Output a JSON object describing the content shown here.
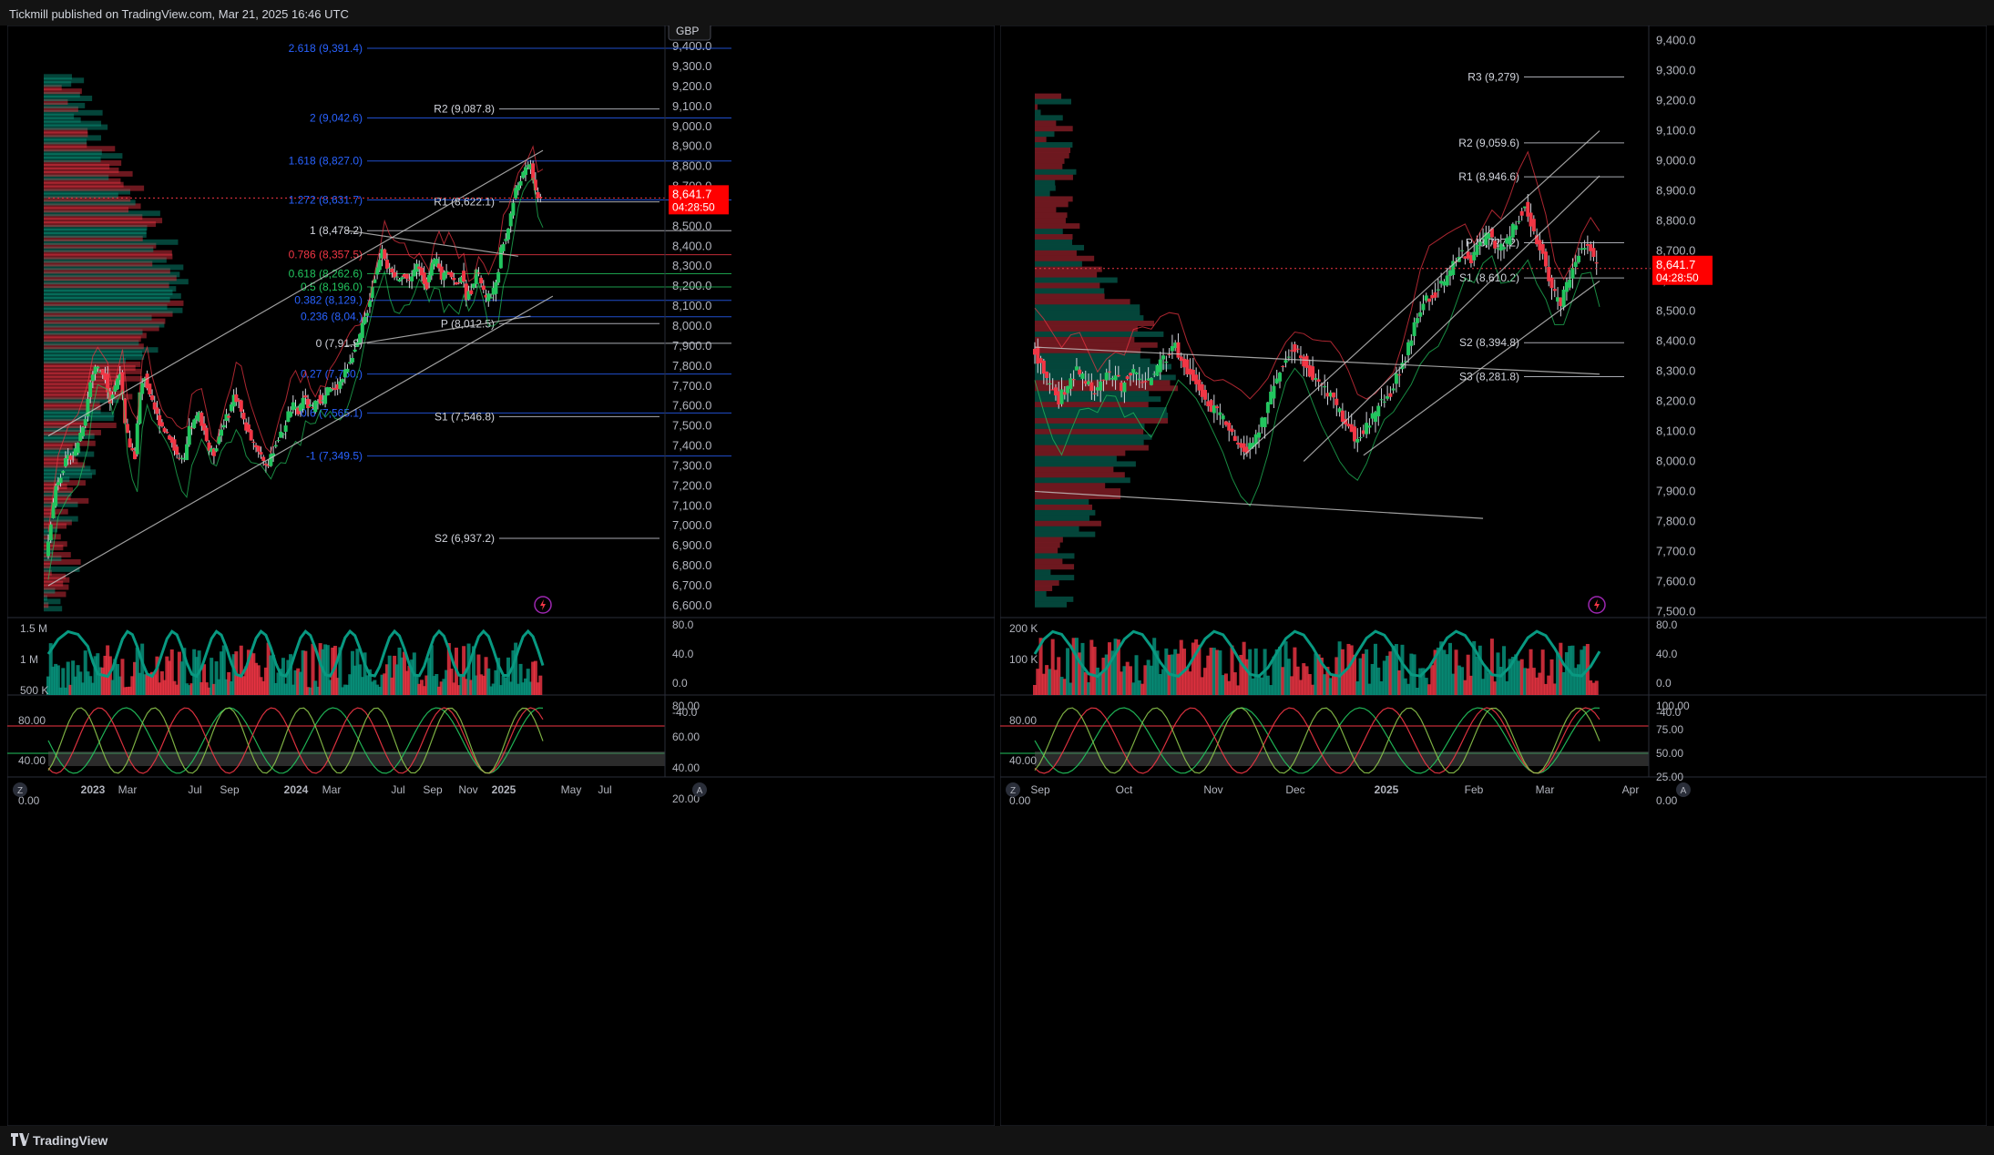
{
  "header": {
    "publish_text": "Tickmill published on TradingView.com, Mar 21, 2025 16:46 UTC"
  },
  "footer": {
    "brand": "TradingView"
  },
  "colors": {
    "up": "#089981",
    "up_bright": "#22c55e",
    "down": "#f23645",
    "background": "#000000",
    "price_tag": "#ff0000",
    "fib": "#2962ff",
    "ma": "#ff9800"
  },
  "icons": [
    "lightning-icon",
    "tradingview-logo-icon",
    "auto-scale-icon",
    "zoom-icon"
  ],
  "charts": {
    "left": {
      "currency": "GBP",
      "price_tag": "8,641.7",
      "countdown": "04:28:50",
      "zoom_label": "Z",
      "auto_label": "A"
    },
    "right": {
      "price_tag": "8,641.7",
      "countdown": "04:28:50",
      "zoom_label": "Z",
      "auto_label": "A"
    }
  },
  "chart_data": [
    {
      "type": "line",
      "panel": "left",
      "timeframe_labels": [
        "2023",
        "Mar",
        "Jul",
        "Sep",
        "2024",
        "Mar",
        "Jul",
        "Sep",
        "Nov",
        "2025",
        "May",
        "Jul"
      ],
      "y_ticks": [
        "9,400.0",
        "9,300.0",
        "9,200.0",
        "9,100.0",
        "9,000.0",
        "8,900.0",
        "8,800.0",
        "8,700.0",
        "8,600.0",
        "8,500.0",
        "8,400.0",
        "8,300.0",
        "8,200.0",
        "8,100.0",
        "8,000.0",
        "7,900.0",
        "7,800.0",
        "7,700.0",
        "7,600.0",
        "7,500.0",
        "7,400.0",
        "7,300.0",
        "7,200.0",
        "7,100.0",
        "7,000.0",
        "6,900.0",
        "6,800.0",
        "6,700.0",
        "6,600.0"
      ],
      "ylim": [
        6540,
        9460
      ],
      "grid": false,
      "series": [
        {
          "name": "",
          "values": [
            [
              0,
              6850
            ],
            [
              4,
              7200
            ],
            [
              8,
              7320
            ],
            [
              12,
              7380
            ],
            [
              16,
              7550
            ],
            [
              18,
              7720
            ],
            [
              20,
              7800
            ],
            [
              24,
              7750
            ],
            [
              26,
              7620
            ],
            [
              28,
              7700
            ],
            [
              30,
              7780
            ],
            [
              32,
              7500
            ],
            [
              34,
              7400
            ],
            [
              36,
              7350
            ],
            [
              38,
              7660
            ],
            [
              40,
              7750
            ],
            [
              42,
              7640
            ],
            [
              44,
              7580
            ],
            [
              46,
              7520
            ],
            [
              48,
              7480
            ],
            [
              50,
              7450
            ],
            [
              52,
              7380
            ],
            [
              54,
              7330
            ],
            [
              56,
              7320
            ],
            [
              58,
              7480
            ],
            [
              60,
              7520
            ],
            [
              62,
              7560
            ],
            [
              64,
              7480
            ],
            [
              66,
              7380
            ],
            [
              68,
              7360
            ],
            [
              70,
              7450
            ],
            [
              72,
              7520
            ],
            [
              74,
              7560
            ],
            [
              76,
              7650
            ],
            [
              78,
              7620
            ],
            [
              80,
              7520
            ],
            [
              82,
              7460
            ],
            [
              84,
              7420
            ],
            [
              86,
              7380
            ],
            [
              88,
              7330
            ],
            [
              90,
              7300
            ],
            [
              92,
              7380
            ],
            [
              94,
              7440
            ],
            [
              96,
              7470
            ],
            [
              98,
              7560
            ],
            [
              100,
              7600
            ],
            [
              102,
              7560
            ],
            [
              104,
              7650
            ],
            [
              106,
              7600
            ],
            [
              108,
              7580
            ],
            [
              110,
              7640
            ],
            [
              112,
              7620
            ],
            [
              114,
              7680
            ],
            [
              116,
              7680
            ],
            [
              118,
              7700
            ],
            [
              120,
              7740
            ],
            [
              122,
              7800
            ],
            [
              124,
              7860
            ],
            [
              126,
              7900
            ],
            [
              128,
              8000
            ],
            [
              130,
              8080
            ],
            [
              132,
              8200
            ],
            [
              134,
              8290
            ],
            [
              136,
              8400
            ],
            [
              138,
              8300
            ],
            [
              140,
              8250
            ],
            [
              142,
              8240
            ],
            [
              144,
              8260
            ],
            [
              146,
              8230
            ],
            [
              148,
              8250
            ],
            [
              150,
              8300
            ],
            [
              152,
              8260
            ],
            [
              154,
              8200
            ],
            [
              156,
              8300
            ],
            [
              158,
              8330
            ],
            [
              160,
              8240
            ],
            [
              162,
              8290
            ],
            [
              164,
              8250
            ],
            [
              166,
              8200
            ],
            [
              168,
              8260
            ],
            [
              170,
              8150
            ],
            [
              172,
              8180
            ],
            [
              174,
              8280
            ],
            [
              176,
              8220
            ],
            [
              178,
              8130
            ],
            [
              180,
              8160
            ],
            [
              182,
              8200
            ],
            [
              184,
              8380
            ],
            [
              186,
              8440
            ],
            [
              188,
              8560
            ],
            [
              190,
              8680
            ],
            [
              192,
              8740
            ],
            [
              194,
              8780
            ],
            [
              196,
              8820
            ],
            [
              198,
              8660
            ],
            [
              200,
              8640
            ]
          ]
        }
      ],
      "annotations": [
        {
          "text": "2.618 (9,391.4)",
          "price": 9391.4,
          "color": "#2962ff"
        },
        {
          "text": "2 (9,042.6)",
          "price": 9042.6,
          "color": "#2962ff"
        },
        {
          "text": "1.618 (8,827.0)",
          "price": 8827.0,
          "color": "#2962ff"
        },
        {
          "text": "1.272 (8,631.7)",
          "price": 8631.7,
          "color": "#2962ff"
        },
        {
          "text": "1 (8,478.2)",
          "price": 8478.2,
          "color": "#d1d4dc"
        },
        {
          "text": "0.786 (8,357.5)",
          "price": 8357.5,
          "color": "#f23645"
        },
        {
          "text": "0.618 (8,262.6)",
          "price": 8262.6,
          "color": "#22c55e"
        },
        {
          "text": "0.5 (8,196.0)",
          "price": 8196.0,
          "color": "#22c55e"
        },
        {
          "text": "0.382 (8,129.)",
          "price": 8129.0,
          "color": "#2962ff"
        },
        {
          "text": "0.236 (8,04.)",
          "price": 8047.0,
          "color": "#2962ff"
        },
        {
          "text": "0 (7,91.9)",
          "price": 7913.9,
          "color": "#d1d4dc"
        },
        {
          "text": "0.27 (7,760.)",
          "price": 7760.0,
          "color": "#2962ff"
        },
        {
          "text": "0.6 (7,565.1)",
          "price": 7565.1,
          "color": "#2962ff"
        },
        {
          "text": "-1 (7,349.5)",
          "price": 7349.5,
          "color": "#2962ff"
        },
        {
          "text": "R2 (9,087.8)",
          "price": 9087.8,
          "color": "#d1d4dc"
        },
        {
          "text": "R1 (8,622.1)",
          "price": 8622.1,
          "color": "#d1d4dc"
        },
        {
          "text": "P (8,012.5)",
          "price": 8012.5,
          "color": "#d1d4dc"
        },
        {
          "text": "S1 (7,546.8)",
          "price": 7546.8,
          "color": "#d1d4dc"
        },
        {
          "text": "S2 (6,937.2)",
          "price": 6937.2,
          "color": "#d1d4dc"
        }
      ],
      "volume_ticks": [
        "1.5 M",
        "1 M",
        "500 K"
      ],
      "oscillator_ticks_left": [
        "80.0",
        "40.0",
        "0.0",
        "-40.0"
      ],
      "stoch_ticks_left": [
        "80.00",
        "40.00",
        "0.00"
      ],
      "stoch_ticks_right": [
        "80.00",
        "60.00",
        "40.00",
        "20.00"
      ]
    },
    {
      "type": "line",
      "panel": "right",
      "timeframe_labels": [
        "Sep",
        "Oct",
        "Nov",
        "Dec",
        "2025",
        "Feb",
        "Mar",
        "Apr"
      ],
      "y_ticks": [
        "9,400.0",
        "9,300.0",
        "9,200.0",
        "9,100.0",
        "9,000.0",
        "8,900.0",
        "8,800.0",
        "8,700.0",
        "8,600.0",
        "8,500.0",
        "8,400.0",
        "8,300.0",
        "8,200.0",
        "8,100.0",
        "8,000.0",
        "7,900.0",
        "7,800.0",
        "7,700.0",
        "7,600.0",
        "7,500.0"
      ],
      "ylim": [
        7480,
        9420
      ],
      "grid": false,
      "series": [
        {
          "name": "",
          "values": [
            [
              0,
              8390
            ],
            [
              3,
              8320
            ],
            [
              6,
              8250
            ],
            [
              9,
              8200
            ],
            [
              12,
              8260
            ],
            [
              15,
              8300
            ],
            [
              18,
              8270
            ],
            [
              21,
              8230
            ],
            [
              24,
              8280
            ],
            [
              27,
              8290
            ],
            [
              30,
              8250
            ],
            [
              33,
              8300
            ],
            [
              36,
              8280
            ],
            [
              39,
              8260
            ],
            [
              42,
              8310
            ],
            [
              45,
              8350
            ],
            [
              48,
              8380
            ],
            [
              51,
              8320
            ],
            [
              54,
              8270
            ],
            [
              57,
              8220
            ],
            [
              60,
              8180
            ],
            [
              63,
              8150
            ],
            [
              66,
              8100
            ],
            [
              69,
              8060
            ],
            [
              72,
              8030
            ],
            [
              75,
              8080
            ],
            [
              78,
              8150
            ],
            [
              81,
              8250
            ],
            [
              84,
              8330
            ],
            [
              87,
              8370
            ],
            [
              90,
              8350
            ],
            [
              93,
              8300
            ],
            [
              96,
              8260
            ],
            [
              99,
              8230
            ],
            [
              102,
              8180
            ],
            [
              105,
              8130
            ],
            [
              108,
              8080
            ],
            [
              111,
              8100
            ],
            [
              114,
              8150
            ],
            [
              117,
              8200
            ],
            [
              120,
              8230
            ],
            [
              123,
              8300
            ],
            [
              126,
              8380
            ],
            [
              129,
              8480
            ],
            [
              132,
              8540
            ],
            [
              135,
              8560
            ],
            [
              138,
              8600
            ],
            [
              141,
              8650
            ],
            [
              144,
              8700
            ],
            [
              147,
              8660
            ],
            [
              150,
              8720
            ],
            [
              153,
              8760
            ],
            [
              156,
              8700
            ],
            [
              159,
              8740
            ],
            [
              162,
              8800
            ],
            [
              165,
              8850
            ],
            [
              168,
              8760
            ],
            [
              171,
              8680
            ],
            [
              174,
              8560
            ],
            [
              177,
              8530
            ],
            [
              180,
              8600
            ],
            [
              183,
              8690
            ],
            [
              186,
              8720
            ],
            [
              189,
              8640
            ]
          ]
        }
      ],
      "annotations": [
        {
          "text": "R3 (9,279)",
          "price": 9279,
          "color": "#d1d4dc"
        },
        {
          "text": "R2 (9,059.6)",
          "price": 9059.6,
          "color": "#d1d4dc"
        },
        {
          "text": "R1 (8,946.6)",
          "price": 8946.6,
          "color": "#d1d4dc"
        },
        {
          "text": "P (8,727.2)",
          "price": 8727.2,
          "color": "#d1d4dc"
        },
        {
          "text": "S1 (8,610.2)",
          "price": 8610.2,
          "color": "#d1d4dc"
        },
        {
          "text": "S2 (8,394.8)",
          "price": 8394.8,
          "color": "#d1d4dc"
        },
        {
          "text": "S3 (8,281.8)",
          "price": 8281.8,
          "color": "#d1d4dc"
        }
      ],
      "volume_ticks": [
        "200 K",
        "100 K"
      ],
      "oscillator_ticks_right": [
        "80.0",
        "40.0",
        "0.0",
        "-40.0"
      ],
      "stoch_ticks_left": [
        "80.00",
        "40.00",
        "0.00"
      ],
      "stoch_ticks_right": [
        "100.00",
        "75.00",
        "50.00",
        "25.00",
        "0.00"
      ]
    }
  ]
}
